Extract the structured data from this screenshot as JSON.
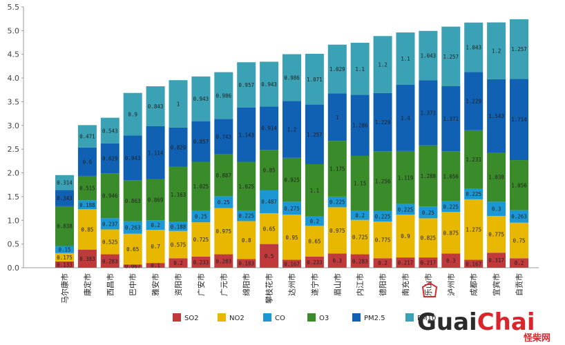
{
  "chart_data": {
    "type": "bar",
    "stacked": true,
    "title": "",
    "xlabel": "",
    "ylabel": "",
    "ylim": [
      0,
      5.5
    ],
    "yticks": [
      "0.0",
      "0.5",
      "1.0",
      "1.5",
      "2.0",
      "2.5",
      "3.0",
      "3.5",
      "4.0",
      "4.5",
      "5.0",
      "5.5"
    ],
    "categories": [
      "马尔康市",
      "康定市",
      "西昌市",
      "巴中市",
      "雅安市",
      "资阳市",
      "广安市",
      "广元市",
      "绵阳市",
      "攀枝花市",
      "达州市",
      "遂宁市",
      "眉山市",
      "内江市",
      "德阳市",
      "南充市",
      "乐山市",
      "泸州市",
      "成都市",
      "宜宾市",
      "自贡市"
    ],
    "series": [
      {
        "name": "SO2",
        "color": "#c0393b",
        "values": [
          0.133,
          0.383,
          0.283,
          0.067,
          0.1,
          0.2,
          0.233,
          0.283,
          0.183,
          0.5,
          0.167,
          0.233,
          0.3,
          0.283,
          0.2,
          0.217,
          0.217,
          0.3,
          0.167,
          0.317,
          0.2
        ],
        "labels": [
          "0.133",
          "0.383",
          "0.283",
          "0.067",
          "0.1",
          "0.2",
          "0.233",
          "0.283",
          "0.183",
          "0.5",
          "0.167",
          "0.233",
          "0.3",
          "0.283",
          "0.2",
          "0.217",
          "0.217",
          "0.3",
          "0.167",
          "0.317",
          "0.2"
        ]
      },
      {
        "name": "NO2",
        "color": "#e8b800",
        "values": [
          0.175,
          0.85,
          0.525,
          0.65,
          0.7,
          0.575,
          0.725,
          0.975,
          0.8,
          0.65,
          0.95,
          0.65,
          0.975,
          0.725,
          0.775,
          0.9,
          0.825,
          0.875,
          1.275,
          0.775,
          0.75
        ],
        "labels": [
          "0.175",
          "0.85",
          "0.525",
          "0.65",
          "0.7",
          "0.575",
          "0.725",
          "0.975",
          "0.8",
          "0.65",
          "0.95",
          "0.65",
          "0.975",
          "0.725",
          "0.775",
          "0.9",
          "0.825",
          "0.875",
          "1.275",
          "0.775",
          "0.75"
        ]
      },
      {
        "name": "CO",
        "color": "#1b97d4",
        "values": [
          0.15,
          0.188,
          0.237,
          0.263,
          0.2,
          0.188,
          0.25,
          0.25,
          0.225,
          0.487,
          0.275,
          0.2,
          0.225,
          0.2,
          0.225,
          0.225,
          0.25,
          0.225,
          0.225,
          0.3,
          0.263
        ],
        "labels": [
          "0.15",
          "0.188",
          "0.237",
          "0.263",
          "0.2",
          "0.188",
          "0.25",
          "0.25",
          "0.225",
          "0.487",
          "0.275",
          "0.2",
          "0.225",
          "0.2",
          "0.225",
          "0.225",
          "0.25",
          "0.225",
          "0.225",
          "0.3",
          "0.263"
        ]
      },
      {
        "name": "O3",
        "color": "#3a8c2a",
        "values": [
          0.838,
          0.515,
          0.946,
          0.863,
          0.869,
          1.163,
          1.025,
          0.887,
          1.025,
          0.85,
          0.925,
          1.1,
          1.175,
          1.15,
          1.256,
          1.119,
          1.288,
          1.056,
          1.231,
          1.038,
          1.056
        ],
        "labels": [
          "0.838",
          "0.515",
          "0.946",
          "0.863",
          "0.869",
          "1.163",
          "1.025",
          "0.887",
          "1.025",
          "0.85",
          "0.925",
          "1.1",
          "1.175",
          "1.15",
          "1.256",
          "1.119",
          "1.288",
          "1.056",
          "1.231",
          "1.038",
          "1.056"
        ]
      },
      {
        "name": "PM2.5",
        "color": "#1060b4",
        "values": [
          0.343,
          0.6,
          0.629,
          0.943,
          1.114,
          0.829,
          0.857,
          0.743,
          1.143,
          0.914,
          1.2,
          1.257,
          1.0,
          1.286,
          1.229,
          1.4,
          1.371,
          1.371,
          1.229,
          1.543,
          1.714
        ],
        "labels": [
          "0.343",
          "0.6",
          "0.629",
          "0.943",
          "1.114",
          "0.829",
          "0.857",
          "0.743",
          "1.143",
          "0.914",
          "1.2",
          "1.257",
          "1",
          "1.286",
          "1.229",
          "1.4",
          "1.371",
          "1.371",
          "1.229",
          "1.543",
          "1.714"
        ]
      },
      {
        "name": "PM10",
        "color": "#3aa2b4",
        "values": [
          0.314,
          0.471,
          0.543,
          0.9,
          0.843,
          1.0,
          0.943,
          0.986,
          0.957,
          0.943,
          0.986,
          1.071,
          1.029,
          1.1,
          1.2,
          1.1,
          1.043,
          1.257,
          1.043,
          1.2,
          1.257
        ],
        "labels": [
          "0.314",
          "0.471",
          "0.543",
          "0.9",
          "0.843",
          "1",
          "0.943",
          "0.986",
          "0.957",
          "0.943",
          "0.986",
          "1.071",
          "1.029",
          "1.1",
          "1.2",
          "1.1",
          "1.043",
          "1.257",
          "1.043",
          "1.2",
          "1.257"
        ]
      }
    ],
    "legend_position": "bottom"
  },
  "watermark": {
    "text_guai": "Guai",
    "text_chai": "Chai",
    "text_cn": "怪柴网",
    "color_dark": "#2a2a2a",
    "color_red": "#d9262c"
  }
}
